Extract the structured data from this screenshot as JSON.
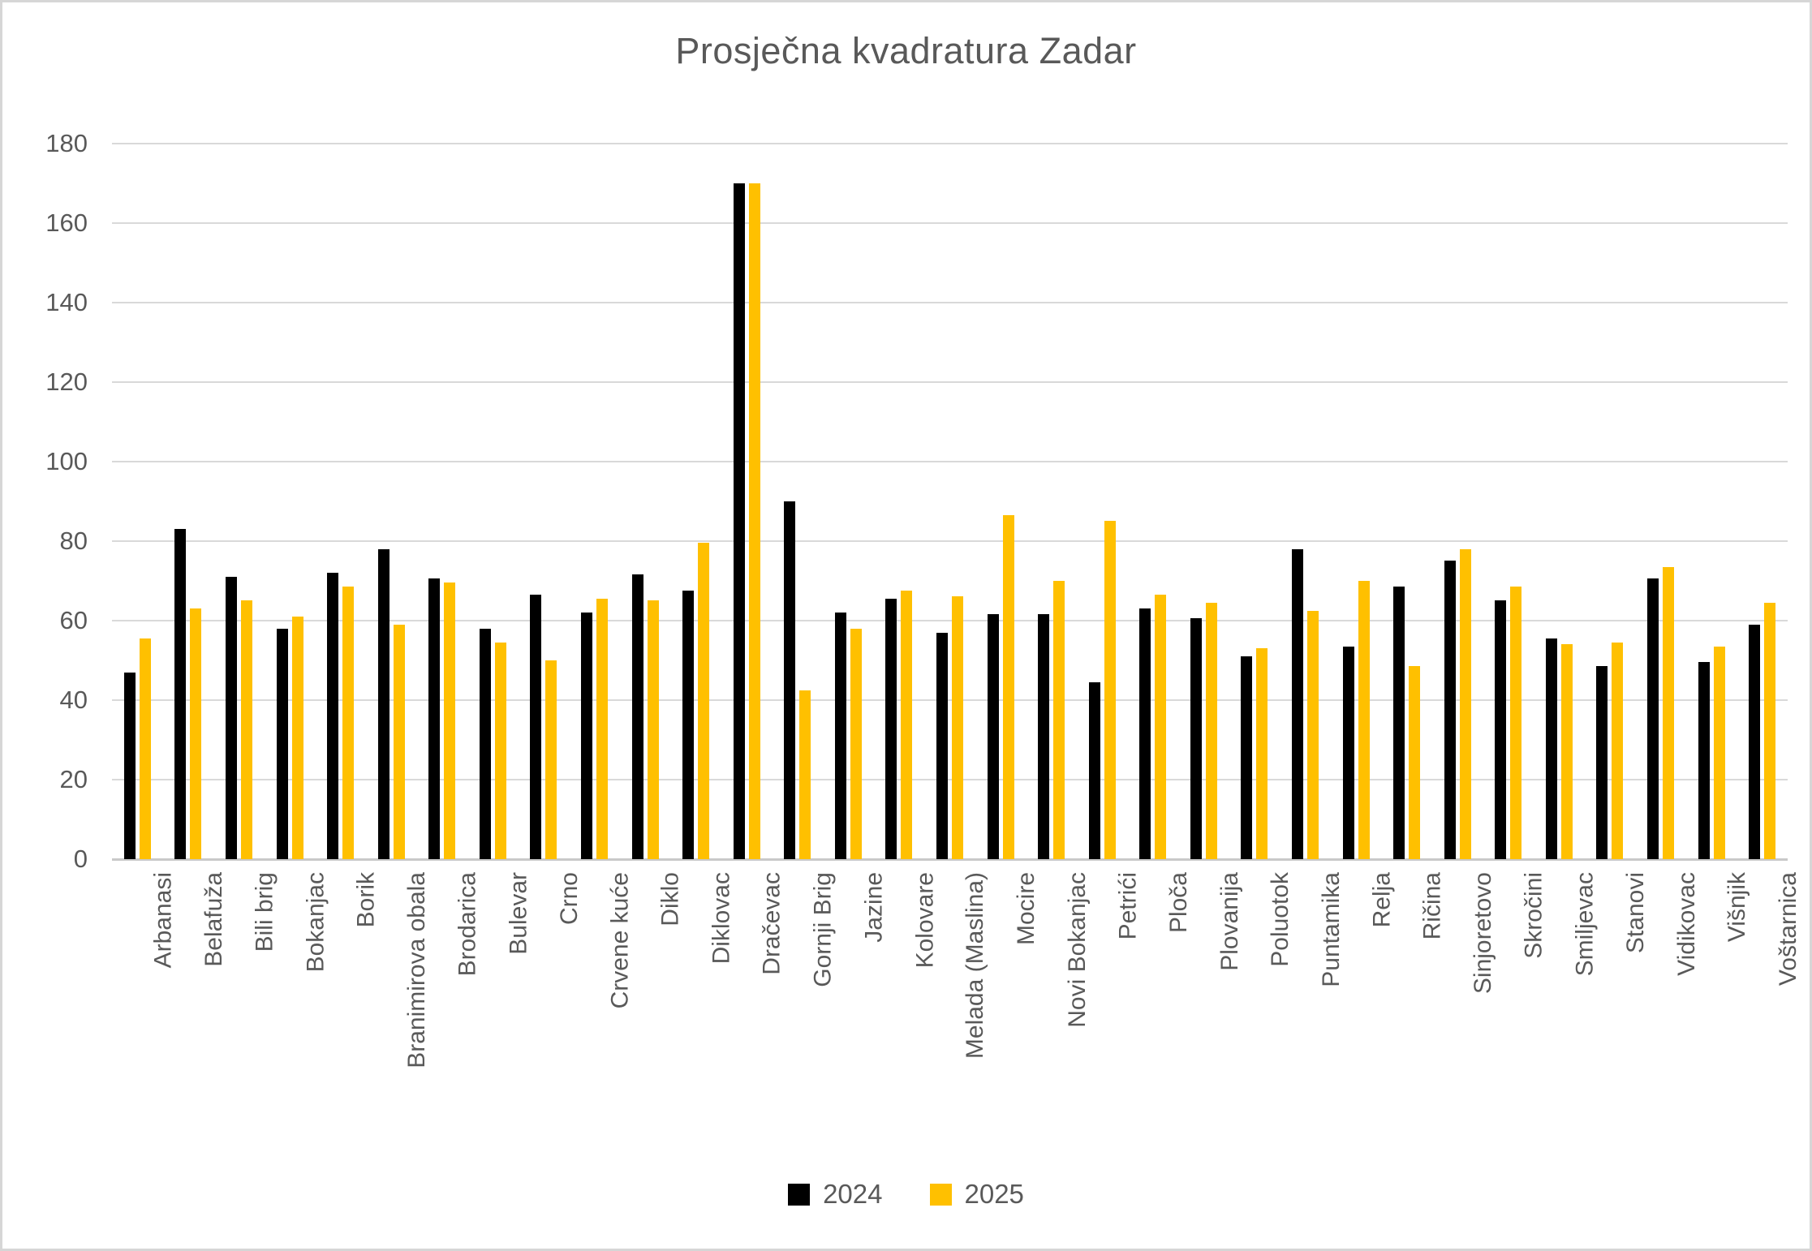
{
  "title": "Prosječna kvadratura Zadar",
  "colors": {
    "series_2024": "#000000",
    "series_2025": "#FFC000",
    "text": "#595959",
    "gridline": "#D9D9D9",
    "canvas_border": "#D6D6D6",
    "background": "#FFFFFF"
  },
  "legend": {
    "items": [
      {
        "label": "2024",
        "color": "#000000"
      },
      {
        "label": "2025",
        "color": "#FFC000"
      }
    ]
  },
  "y_axis": {
    "ticks": [
      0,
      20,
      40,
      60,
      80,
      100,
      120,
      140,
      160,
      180
    ]
  },
  "chart_data": {
    "type": "bar",
    "title": "Prosječna kvadratura Zadar",
    "xlabel": "",
    "ylabel": "",
    "ylim": [
      0,
      180
    ],
    "ytick_interval": 20,
    "grid": true,
    "legend_position": "bottom",
    "categories": [
      "Arbanasi",
      "Belafuža",
      "Bili brig",
      "Bokanjac",
      "Borik",
      "Branimirova obala",
      "Brodarica",
      "Bulevar",
      "Crno",
      "Crvene kuće",
      "Diklo",
      "Diklovac",
      "Dračevac",
      "Gornji Brig",
      "Jazine",
      "Kolovare",
      "Melada (Maslina)",
      "Mocire",
      "Novi Bokanjac",
      "Petrići",
      "Ploča",
      "Plovanija",
      "Poluotok",
      "Puntamika",
      "Relja",
      "Ričina",
      "Sinjoretovo",
      "Skročini",
      "Smiljevac",
      "Stanovi",
      "Vidikovac",
      "Višnjik",
      "Voštarnica"
    ],
    "series": [
      {
        "name": "2024",
        "color": "#000000",
        "values": [
          47,
          83,
          71,
          58,
          72,
          78,
          70.5,
          58,
          66.5,
          62,
          71.5,
          67.5,
          170,
          90,
          62,
          65.5,
          57,
          61.5,
          61.5,
          44.5,
          63,
          60.5,
          51,
          78,
          53.5,
          68.5,
          75,
          65,
          55.5,
          48.5,
          70.5,
          49.5,
          59
        ]
      },
      {
        "name": "2025",
        "color": "#FFC000",
        "values": [
          55.5,
          63,
          65,
          61,
          68.5,
          59,
          69.5,
          54.5,
          50,
          65.5,
          65,
          79.5,
          170,
          42.5,
          58,
          67.5,
          66,
          86.5,
          70,
          85,
          66.5,
          64.5,
          53,
          62.5,
          70,
          48.5,
          78,
          68.5,
          54,
          54.5,
          73.5,
          53.5,
          64.5
        ]
      }
    ]
  }
}
